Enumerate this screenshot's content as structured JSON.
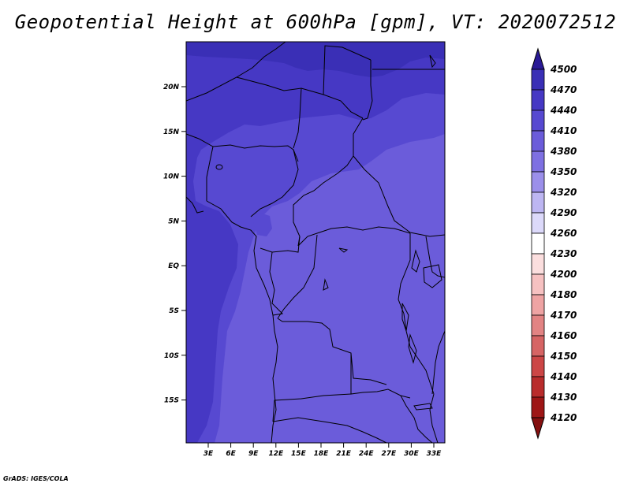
{
  "title": "Geopotential Height at 600hPa [gpm], VT: 2020072512",
  "credit": "GrADS: IGES/COLA",
  "map": {
    "lat_ticks": [
      "20N",
      "15N",
      "10N",
      "5N",
      "EQ",
      "5S",
      "10S",
      "15S"
    ],
    "lon_ticks": [
      "3E",
      "6E",
      "9E",
      "12E",
      "15E",
      "18E",
      "21E",
      "24E",
      "27E",
      "30E",
      "33E"
    ],
    "field_colors": {
      "c4470": "#3a2fb6",
      "c4440": "#4638c4",
      "c4410": "#5749d1",
      "c4380": "#6b5cda"
    },
    "boundary_color": "#000000"
  },
  "colorbar": {
    "levels": [
      "4500",
      "4470",
      "4440",
      "4410",
      "4380",
      "4350",
      "4320",
      "4290",
      "4260",
      "4230",
      "4200",
      "4180",
      "4170",
      "4160",
      "4150",
      "4140",
      "4130",
      "4120"
    ],
    "colors": [
      "#2a1a96",
      "#3a2fb6",
      "#4638c4",
      "#5749d1",
      "#6b5cda",
      "#7e70e2",
      "#9b8fea",
      "#bdb6f2",
      "#dcd9fa",
      "#ffffff",
      "#fbdede",
      "#f6c1c1",
      "#eea3a3",
      "#e28383",
      "#d66464",
      "#cc4646",
      "#b92c2c",
      "#9e1616",
      "#841010"
    ]
  }
}
